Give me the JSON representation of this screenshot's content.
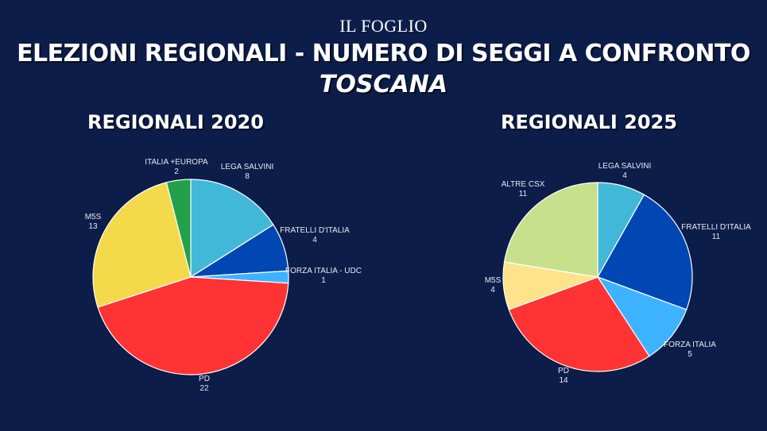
{
  "header": {
    "brand": "IL FOGLIO",
    "title": "ELEZIONI REGIONALI - NUMERO DI SEGGI A CONFRONTO",
    "subtitle": "TOSCANA"
  },
  "chart_data": [
    {
      "type": "pie",
      "title": "REGIONALI 2020",
      "slices": [
        {
          "label": "LEGA SALVINI",
          "value": 8,
          "color": "#42b8d8"
        },
        {
          "label": "FRATELLI D'ITALIA",
          "value": 4,
          "color": "#0047b3"
        },
        {
          "label": "FORZA ITALIA - UDC",
          "value": 1,
          "color": "#3db3ff"
        },
        {
          "label": "PD",
          "value": 22,
          "color": "#ff3333"
        },
        {
          "label": "M5S",
          "value": 13,
          "color": "#f4d94a"
        },
        {
          "label": "ITALIA +EUROPA",
          "value": 2,
          "color": "#23a04a"
        }
      ]
    },
    {
      "type": "pie",
      "title": "REGIONALI 2025",
      "slices": [
        {
          "label": "LEGA SALVINI",
          "value": 4,
          "color": "#42b8d8"
        },
        {
          "label": "FRATELLI D'ITALIA",
          "value": 11,
          "color": "#0047b3"
        },
        {
          "label": "FORZA ITALIA",
          "value": 5,
          "color": "#3db3ff"
        },
        {
          "label": "PD",
          "value": 14,
          "color": "#ff3333"
        },
        {
          "label": "M5S",
          "value": 4,
          "color": "#fde48a"
        },
        {
          "label": "ALTRE CSX",
          "value": 11,
          "color": "#c8df8c"
        }
      ]
    }
  ]
}
